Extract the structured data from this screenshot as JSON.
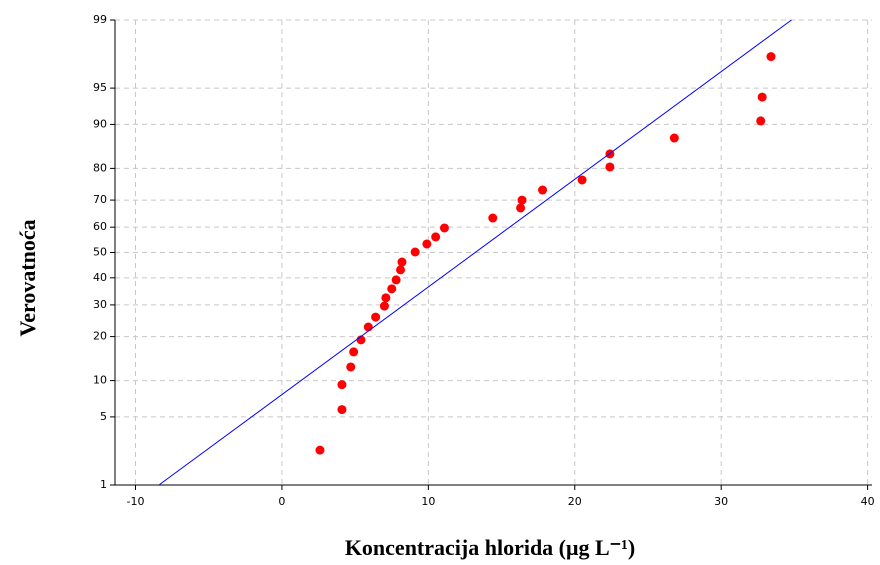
{
  "chart_data": {
    "type": "scatter",
    "x_label": "Koncentracija hlorida (μg L⁻¹)",
    "y_label": "Verovatnoća",
    "yscale": "probit",
    "grid": true,
    "xlim": [
      -11.4,
      40.3
    ],
    "xticks": [
      -10,
      0,
      10,
      20,
      30,
      40
    ],
    "ylim": [
      1,
      99
    ],
    "yticks": [
      1,
      5,
      10,
      20,
      30,
      40,
      50,
      60,
      70,
      80,
      90,
      95,
      99
    ],
    "series": [
      {
        "type": "scatter",
        "color": "#ff0000",
        "x": [
          2.6,
          4.1,
          4.1,
          4.7,
          4.9,
          5.4,
          5.9,
          6.4,
          7.0,
          7.1,
          7.5,
          7.8,
          8.1,
          8.2,
          9.1,
          9.9,
          10.5,
          11.1,
          14.4,
          16.3,
          16.4,
          17.8,
          20.5,
          22.4,
          22.4,
          26.8,
          32.7,
          32.8,
          33.4
        ],
        "values": [
          2.4,
          5.8,
          9.3,
          12.6,
          16.0,
          19.1,
          22.8,
          25.9,
          29.6,
          32.5,
          35.8,
          39.2,
          43.1,
          46.2,
          50.2,
          53.4,
          56.2,
          59.7,
          63.5,
          67.2,
          70.0,
          73.4,
          76.6,
          80.4,
          83.8,
          87.4,
          90.6,
          94.0,
          97.5
        ]
      },
      {
        "type": "line",
        "color": "#0000ff",
        "x": [
          -8.4,
          34.8
        ],
        "values": [
          1,
          99
        ]
      }
    ]
  }
}
